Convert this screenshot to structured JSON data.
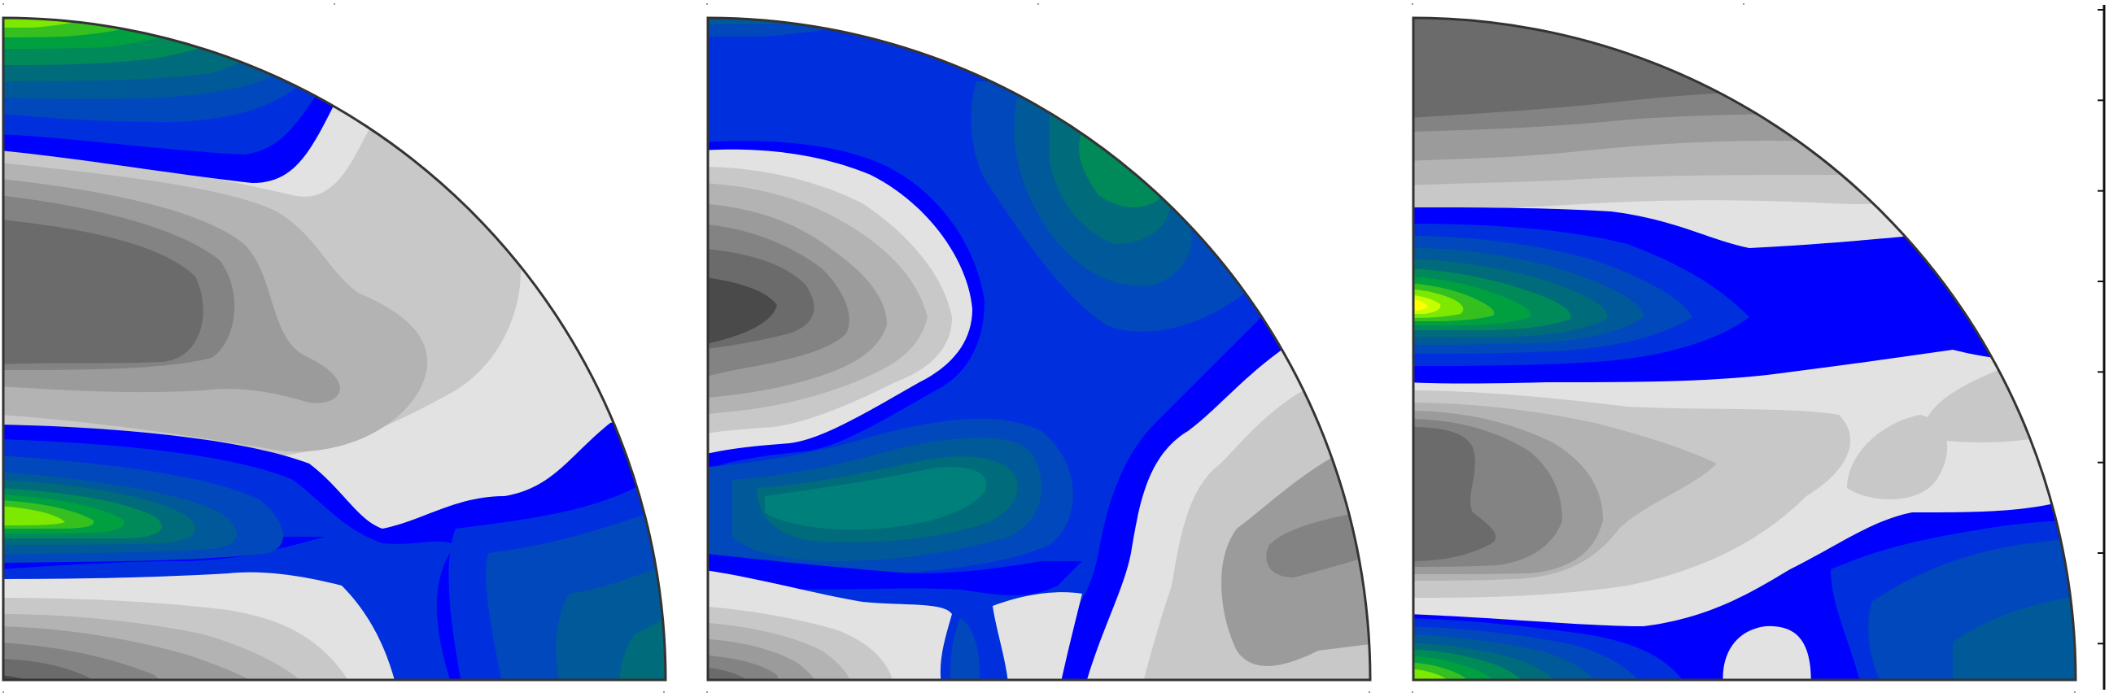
{
  "figure": {
    "panel_count": 3,
    "panel_shape": "quarter-circle",
    "has_colorbar": true,
    "colorbar_tick_count": 8,
    "tick_labels_visible": false
  },
  "colors": {
    "background": "#ffffff",
    "outline": "#333333",
    "gray_levels": [
      "#4a4a4a",
      "#6b6b6b",
      "#838383",
      "#9b9b9b",
      "#b3b3b3",
      "#c8c8c8",
      "#e2e2e2"
    ],
    "blue_levels": [
      "#0000ff",
      "#0030dd",
      "#0048bb",
      "#005a9a",
      "#006b7a"
    ],
    "green_levels": [
      "#008a5a",
      "#00a040",
      "#35c020",
      "#7de800",
      "#c8ff00",
      "#ffff00"
    ]
  },
  "panels": [
    {
      "id": "panel-1"
    },
    {
      "id": "panel-2"
    },
    {
      "id": "panel-3"
    }
  ]
}
